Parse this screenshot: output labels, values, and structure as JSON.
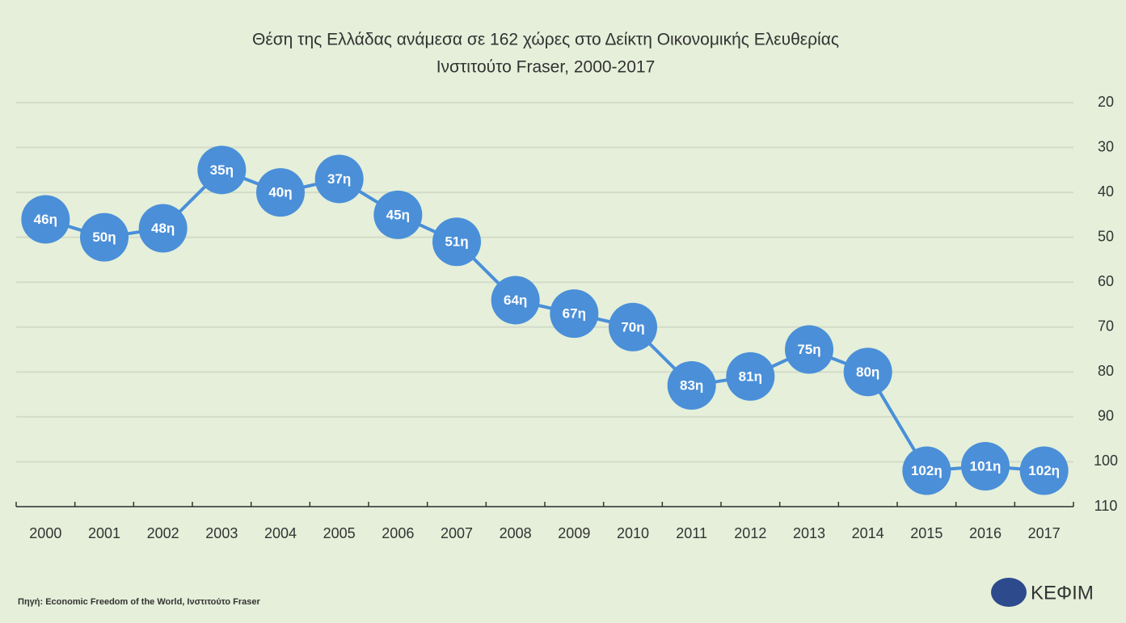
{
  "chart_data": {
    "type": "line",
    "title": "Θέση της Ελλάδας ανάμεσα σε 162 χώρες στο Δείκτη Οικονομικής Ελευθερίας",
    "subtitle": "Ινστιτούτο Fraser, 2000-2017",
    "categories": [
      "2000",
      "2001",
      "2002",
      "2003",
      "2004",
      "2005",
      "2006",
      "2007",
      "2008",
      "2009",
      "2010",
      "2011",
      "2012",
      "2013",
      "2014",
      "2015",
      "2016",
      "2017"
    ],
    "values": [
      46,
      50,
      48,
      35,
      40,
      37,
      45,
      51,
      64,
      67,
      70,
      83,
      81,
      75,
      80,
      102,
      101,
      102
    ],
    "value_labels": [
      "46η",
      "50η",
      "48η",
      "35η",
      "40η",
      "37η",
      "45η",
      "51η",
      "64η",
      "67η",
      "70η",
      "83η",
      "81η",
      "75η",
      "80η",
      "102η",
      "101η",
      "102η"
    ],
    "color": "#4a8fd8",
    "ylim": [
      20,
      110
    ],
    "yticks": [
      20,
      30,
      40,
      50,
      60,
      70,
      80,
      90,
      100,
      110
    ],
    "inverted": true,
    "y_axis_side": "right",
    "grid": true,
    "source": "Πηγή: Economic Freedom of the World, Ινστιτούτο Fraser",
    "logo": "ΚΕΦΙΜ"
  }
}
